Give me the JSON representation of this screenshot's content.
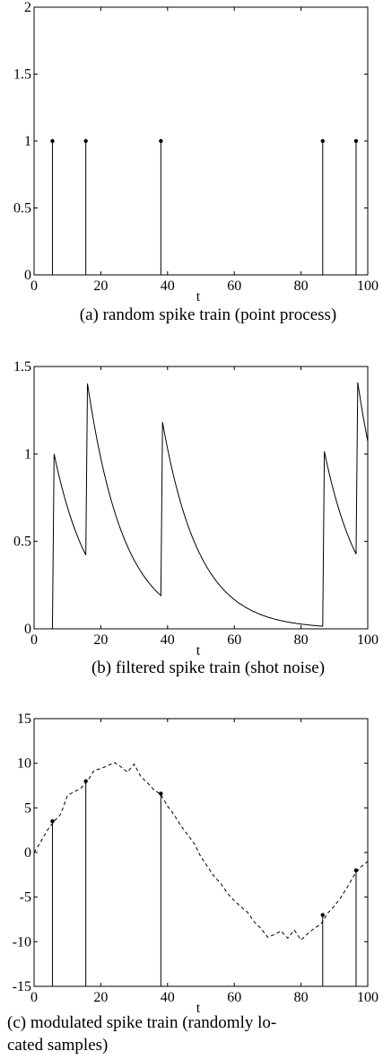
{
  "chart_data": [
    {
      "type": "stem",
      "xlabel": "t",
      "ylabel": "",
      "xlim": [
        0,
        100
      ],
      "ylim": [
        0,
        2
      ],
      "xticks": [
        0,
        20,
        40,
        60,
        80,
        100
      ],
      "yticks": [
        0,
        0.5,
        1,
        1.5,
        2
      ],
      "series": [
        {
          "x": [
            5.5,
            15.5,
            38,
            86.5,
            96.5
          ],
          "y": [
            1,
            1,
            1,
            1,
            1
          ]
        }
      ],
      "caption_lines": [
        "(a)  random  spike  train  (point  process)"
      ]
    },
    {
      "type": "line",
      "xlabel": "t",
      "ylabel": "",
      "xlim": [
        0,
        100
      ],
      "ylim": [
        0,
        1.5
      ],
      "xticks": [
        0,
        20,
        40,
        60,
        80,
        100
      ],
      "yticks": [
        0,
        0.5,
        1,
        1.5
      ],
      "spikes": [
        5.5,
        15.5,
        38,
        86.5,
        96.5
      ],
      "decay_tau": 11,
      "caption_lines": [
        "(b)  filtered  spike  train  (shot  noise)"
      ]
    },
    {
      "type": "line+stem",
      "xlabel": "t",
      "ylabel": "",
      "xlim": [
        0,
        100
      ],
      "ylim": [
        -15,
        15
      ],
      "xticks": [
        0,
        20,
        40,
        60,
        80,
        100
      ],
      "yticks": [
        -15,
        -10,
        -5,
        0,
        5,
        10,
        15
      ],
      "series": [
        {
          "style": "dashed",
          "x": [
            0,
            2,
            4,
            6,
            8,
            10,
            12,
            14,
            16,
            18,
            20,
            22,
            24,
            26,
            28,
            30,
            32,
            34,
            36,
            38,
            40,
            42,
            44,
            46,
            48,
            50,
            52,
            54,
            56,
            58,
            60,
            62,
            64,
            66,
            68,
            70,
            72,
            74,
            76,
            78,
            80,
            82,
            84,
            86,
            88,
            90,
            92,
            94,
            96,
            98,
            100
          ],
          "y": [
            0,
            1.2,
            2.5,
            3.5,
            4.3,
            6.4,
            6.8,
            7.2,
            8.0,
            9.2,
            9.4,
            9.7,
            10.1,
            9.6,
            9.0,
            9.9,
            8.5,
            7.8,
            7.0,
            6.5,
            5.2,
            4.2,
            3.0,
            2.0,
            1.0,
            -0.5,
            -1.6,
            -2.7,
            -3.5,
            -4.6,
            -5.4,
            -6.1,
            -6.7,
            -7.8,
            -8.5,
            -9.5,
            -9.2,
            -8.8,
            -9.6,
            -8.7,
            -9.8,
            -9.1,
            -8.5,
            -8.0,
            -6.8,
            -6.0,
            -5.0,
            -3.8,
            -2.5,
            -1.6,
            -1.0
          ]
        },
        {
          "style": "stem",
          "x": [
            5.5,
            15.5,
            38,
            86.5,
            96.5
          ],
          "y": [
            3.5,
            8.0,
            6.6,
            -7.0,
            -2.0
          ]
        }
      ],
      "caption_lines": [
        "(c)  modulated  spike  train  (randomly  lo-",
        "cated  samples)"
      ]
    }
  ]
}
